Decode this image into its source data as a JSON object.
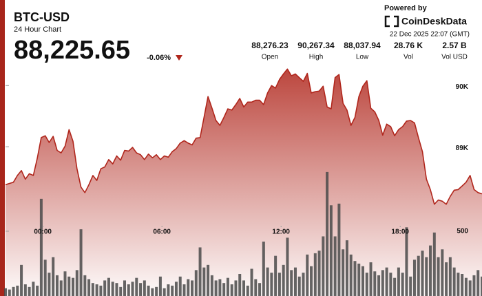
{
  "header": {
    "symbol": "BTC-USD",
    "subtitle": "24 Hour Chart",
    "price": "88,225.65",
    "change": "-0.06%",
    "powered": "Powered by",
    "brand": "CoinDeskData",
    "date": "22 Dec 2025 22:07 (GMT)",
    "stats": [
      {
        "value": "88,276.23",
        "label": "Open"
      },
      {
        "value": "90,267.34",
        "label": "High"
      },
      {
        "value": "88,037.94",
        "label": "Low"
      },
      {
        "value": "28.76 K",
        "label": "Vol"
      },
      {
        "value": "2.57 B",
        "label": "Vol USD"
      }
    ]
  },
  "chart_data": {
    "type": "line",
    "x": [
      0,
      0.2,
      0.4,
      0.6,
      0.8,
      1,
      1.2,
      1.4,
      1.6,
      1.8,
      2,
      2.2,
      2.4,
      2.6,
      2.8,
      3,
      3.2,
      3.4,
      3.6,
      3.8,
      4,
      4.2,
      4.4,
      4.6,
      4.8,
      5,
      5.2,
      5.4,
      5.6,
      5.8,
      6,
      6.2,
      6.4,
      6.6,
      6.8,
      7,
      7.2,
      7.4,
      7.6,
      7.8,
      8,
      8.2,
      8.4,
      8.6,
      8.8,
      9,
      9.2,
      9.4,
      9.6,
      9.8,
      10,
      10.2,
      10.4,
      10.6,
      10.8,
      11,
      11.2,
      11.4,
      11.6,
      11.8,
      12,
      12.2,
      12.4,
      12.6,
      12.8,
      13,
      13.2,
      13.4,
      13.6,
      13.8,
      14,
      14.2,
      14.4,
      14.6,
      14.8,
      15,
      15.2,
      15.4,
      15.6,
      15.8,
      16,
      16.2,
      16.4,
      16.6,
      16.8,
      17,
      17.2,
      17.4,
      17.6,
      17.8,
      18,
      18.2,
      18.4,
      18.6,
      18.8,
      19,
      19.2,
      19.4,
      19.6,
      19.8,
      20,
      20.2,
      20.4,
      20.6,
      20.8,
      21,
      21.2,
      21.4,
      21.6,
      21.8,
      22,
      22.2,
      22.4,
      22.6,
      22.8,
      23,
      23.2,
      23.4,
      23.6,
      23.8,
      24
    ],
    "series": [
      {
        "color": "#b0261c",
        "values": [
          88380,
          88400,
          88420,
          88530,
          88610,
          88470,
          88560,
          88530,
          88810,
          89150,
          89180,
          89070,
          89170,
          88940,
          88900,
          89010,
          89280,
          89090,
          88640,
          88340,
          88250,
          88380,
          88530,
          88450,
          88640,
          88670,
          88790,
          88720,
          88850,
          88780,
          88940,
          88930,
          88990,
          88900,
          88870,
          88790,
          88880,
          88820,
          88870,
          88790,
          88850,
          88830,
          88920,
          88970,
          89060,
          89100,
          89060,
          89030,
          89140,
          89150,
          89480,
          89820,
          89630,
          89430,
          89350,
          89480,
          89620,
          89600,
          89690,
          89790,
          89650,
          89730,
          89730,
          89760,
          89760,
          89690,
          89880,
          90000,
          89960,
          90100,
          90190,
          90270,
          90160,
          90190,
          90130,
          90070,
          90200,
          89880,
          89900,
          89910,
          89990,
          89650,
          89620,
          90130,
          90180,
          89710,
          89600,
          89350,
          89480,
          89820,
          89990,
          90080,
          89630,
          89570,
          89430,
          89190,
          89370,
          89330,
          89180,
          89280,
          89330,
          89420,
          89430,
          89390,
          89150,
          88920,
          88470,
          88300,
          88060,
          88130,
          88110,
          88060,
          88190,
          88290,
          88300,
          88360,
          88420,
          88530,
          88300,
          88250,
          88230
        ]
      },
      {
        "color": "#4a4a4a",
        "axis": "y2",
        "values": [
          60,
          50,
          70,
          80,
          240,
          90,
          70,
          110,
          80,
          750,
          280,
          180,
          300,
          160,
          120,
          190,
          150,
          140,
          200,
          515,
          160,
          130,
          100,
          90,
          80,
          120,
          140,
          110,
          100,
          70,
          120,
          90,
          110,
          140,
          100,
          120,
          80,
          60,
          70,
          150,
          60,
          90,
          80,
          110,
          150,
          90,
          130,
          120,
          200,
          375,
          220,
          240,
          160,
          120,
          130,
          100,
          140,
          90,
          120,
          170,
          120,
          80,
          210,
          130,
          100,
          420,
          220,
          180,
          310,
          180,
          240,
          450,
          200,
          220,
          150,
          180,
          320,
          230,
          330,
          350,
          460,
          957,
          700,
          460,
          713,
          360,
          430,
          320,
          270,
          250,
          230,
          180,
          260,
          190,
          160,
          200,
          220,
          180,
          140,
          220,
          180,
          530,
          150,
          280,
          310,
          350,
          300,
          390,
          490,
          300,
          360,
          260,
          300,
          220,
          180,
          170,
          140,
          120,
          160,
          200,
          150
        ]
      }
    ],
    "xlim": [
      0,
      24
    ],
    "xticks": [
      {
        "value": 1.88,
        "label": "00:00"
      },
      {
        "value": 7.88,
        "label": "06:00"
      },
      {
        "value": 13.88,
        "label": "12:00"
      },
      {
        "value": 19.88,
        "label": "18:00"
      }
    ],
    "ylim": [
      86560,
      90330
    ],
    "yticks": [
      {
        "value": 89000,
        "label": "89K"
      },
      {
        "value": 90000,
        "label": "90K"
      }
    ],
    "y2lim": [
      0,
      1780
    ],
    "y2ticks": [
      500
    ]
  }
}
